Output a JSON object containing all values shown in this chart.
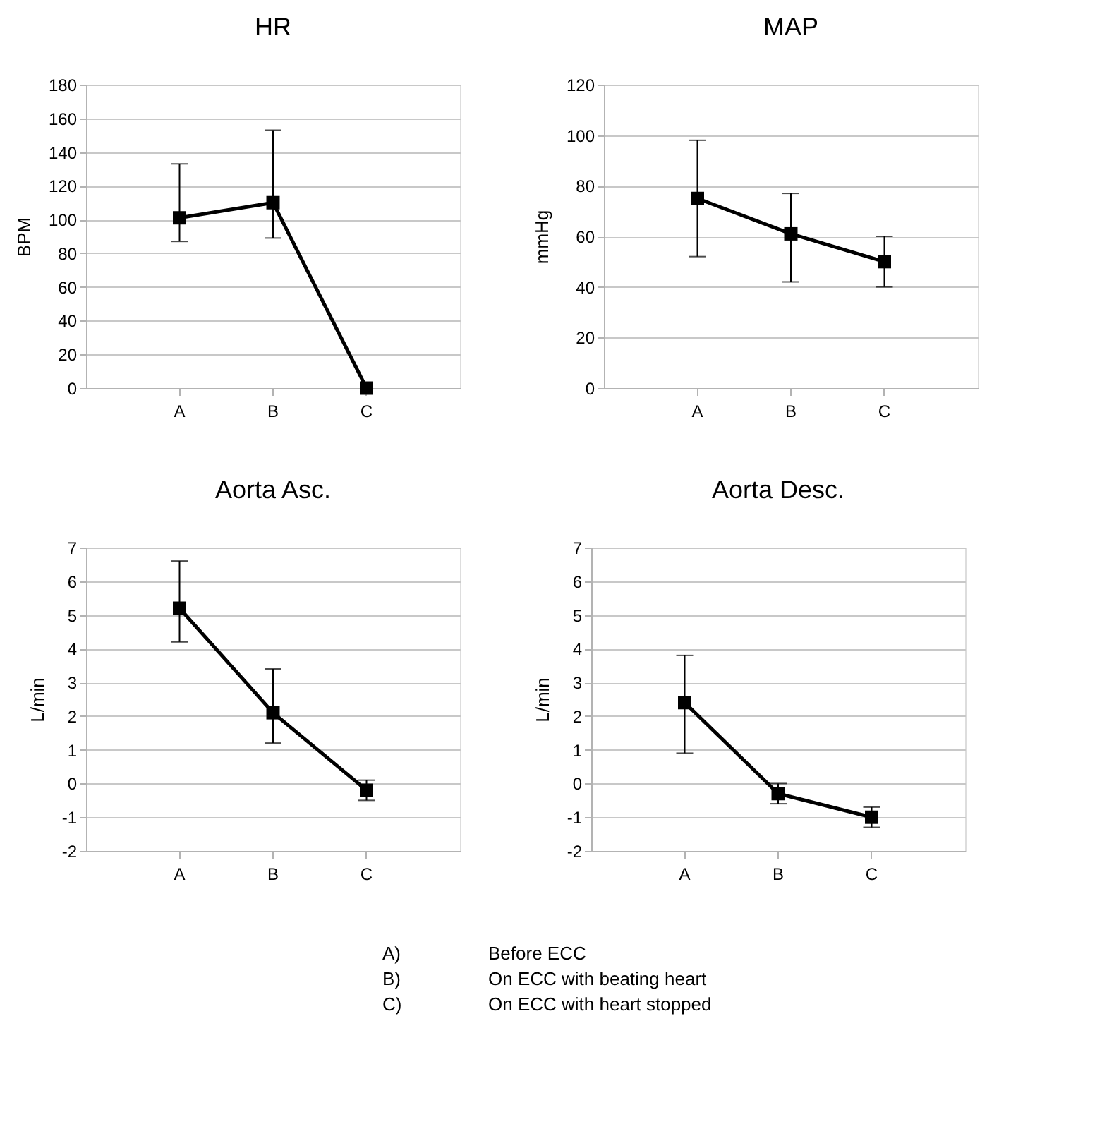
{
  "chart_data": [
    {
      "type": "line",
      "title": "HR",
      "ylabel": "BPM",
      "categories": [
        "A",
        "B",
        "C"
      ],
      "series": [
        {
          "color": "#000000",
          "values": [
            101,
            110,
            0
          ],
          "errors": [
            [
              87,
              133
            ],
            [
              89,
              153
            ],
            null
          ]
        }
      ],
      "ylim": [
        0,
        180
      ],
      "yticks": [
        0,
        20,
        40,
        60,
        80,
        100,
        120,
        140,
        160,
        180
      ],
      "grid": "y",
      "marker": "square",
      "line_style": "solid"
    },
    {
      "type": "line",
      "title": "MAP",
      "ylabel": "mmHg",
      "categories": [
        "A",
        "B",
        "C"
      ],
      "series": [
        {
          "color": "#000000",
          "values": [
            75,
            61,
            50
          ],
          "errors": [
            [
              52,
              98
            ],
            [
              42,
              77
            ],
            [
              40,
              60
            ]
          ]
        }
      ],
      "ylim": [
        0,
        120
      ],
      "yticks": [
        0,
        20,
        40,
        60,
        80,
        100,
        120
      ],
      "grid": "y",
      "marker": "square",
      "line_style": "solid"
    },
    {
      "type": "line",
      "title": "Aorta Asc.",
      "ylabel": "L/min",
      "categories": [
        "A",
        "B",
        "C"
      ],
      "series": [
        {
          "color": "#000000",
          "values": [
            5.2,
            2.1,
            -0.2
          ],
          "errors": [
            [
              4.2,
              6.6
            ],
            [
              1.2,
              3.4
            ],
            [
              -0.5,
              0.1
            ]
          ]
        }
      ],
      "ylim": [
        -2,
        7
      ],
      "yticks": [
        -2,
        -1,
        0,
        1,
        2,
        3,
        4,
        5,
        6,
        7
      ],
      "grid": "y",
      "marker": "square",
      "line_style": "solid"
    },
    {
      "type": "line",
      "title": "Aorta Desc.",
      "ylabel": "L/min",
      "categories": [
        "A",
        "B",
        "C"
      ],
      "series": [
        {
          "color": "#000000",
          "values": [
            2.4,
            -0.3,
            -1.0
          ],
          "errors": [
            [
              0.9,
              3.8
            ],
            [
              -0.6,
              0.0
            ],
            [
              -1.3,
              -0.7
            ]
          ]
        }
      ],
      "ylim": [
        -2,
        7
      ],
      "yticks": [
        -2,
        -1,
        0,
        1,
        2,
        3,
        4,
        5,
        6,
        7
      ],
      "grid": "y",
      "marker": "square",
      "line_style": "solid",
      "annotations": [
        "A) Before ECC",
        "B) On ECC with beating heart",
        "C) On ECC with heart stopped"
      ]
    }
  ]
}
